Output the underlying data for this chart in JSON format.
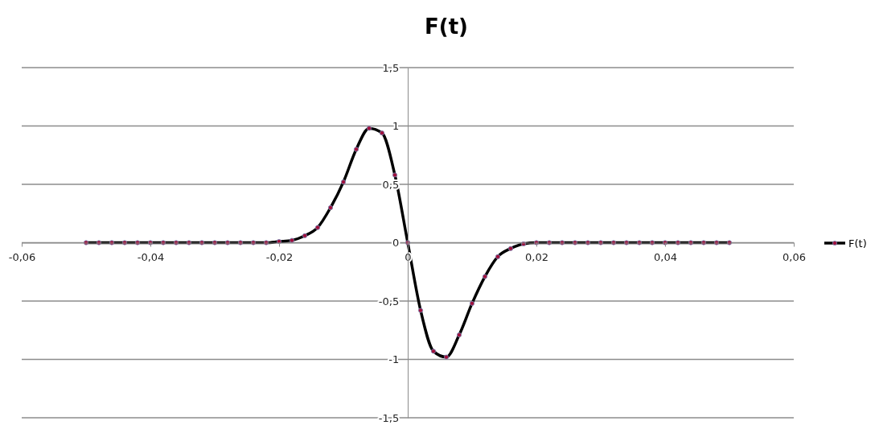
{
  "chart_data": {
    "type": "line",
    "title": "F(t)",
    "x": [
      -0.05,
      -0.048,
      -0.046,
      -0.044,
      -0.042,
      -0.04,
      -0.038,
      -0.036,
      -0.034,
      -0.032,
      -0.03,
      -0.028,
      -0.026,
      -0.024,
      -0.022,
      -0.02,
      -0.018,
      -0.016,
      -0.014,
      -0.012,
      -0.01,
      -0.008,
      -0.006,
      -0.004,
      -0.002,
      0,
      0.002,
      0.004,
      0.006,
      0.008,
      0.01,
      0.012,
      0.014,
      0.016,
      0.018,
      0.02,
      0.022,
      0.024,
      0.026,
      0.028,
      0.03,
      0.032,
      0.034,
      0.036,
      0.038,
      0.04,
      0.042,
      0.044,
      0.046,
      0.048,
      0.05
    ],
    "series": [
      {
        "name": "F(t)",
        "color": "#000000",
        "values": [
          0,
          0,
          0,
          0,
          0,
          0,
          0,
          0,
          0,
          0,
          0,
          0,
          0,
          0,
          0,
          0.01,
          0.02,
          0.06,
          0.13,
          0.3,
          0.52,
          0.8,
          0.98,
          0.94,
          0.58,
          0,
          -0.58,
          -0.93,
          -0.98,
          -0.79,
          -0.52,
          -0.29,
          -0.12,
          -0.05,
          -0.01,
          0,
          0,
          0,
          0,
          0,
          0,
          0,
          0,
          0,
          0,
          0,
          0,
          0,
          0,
          0,
          0
        ]
      }
    ],
    "xlim": [
      -0.06,
      0.06
    ],
    "xticks": [
      {
        "value": -0.06,
        "label": "-0,06"
      },
      {
        "value": -0.04,
        "label": "-0,04"
      },
      {
        "value": -0.02,
        "label": "-0,02"
      },
      0,
      {
        "value": 0.02,
        "label": "0,02"
      },
      {
        "value": 0.04,
        "label": "0,04"
      },
      {
        "value": 0.06,
        "label": "0,06"
      }
    ],
    "ylim": [
      -1.5,
      1.5
    ],
    "yticks": [
      {
        "value": -1.5,
        "label": "-1,5"
      },
      -1,
      {
        "value": -0.5,
        "label": "-0,5"
      },
      0,
      {
        "value": 0.5,
        "label": "0,5"
      },
      1,
      {
        "value": 1.5,
        "label": "1,5"
      }
    ],
    "grid": "y",
    "legend": "right",
    "marker": "circle",
    "line_style": "solid"
  }
}
